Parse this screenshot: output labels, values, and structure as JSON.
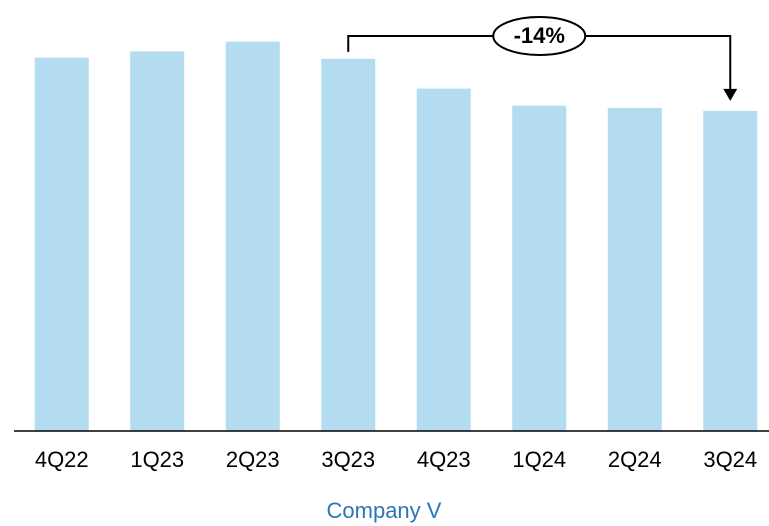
{
  "chart_data": {
    "type": "bar",
    "categories": [
      "4Q22",
      "1Q23",
      "2Q23",
      "3Q23",
      "4Q23",
      "1Q24",
      "2Q24",
      "3Q24"
    ],
    "values": [
      100.3,
      102,
      104.6,
      100,
      92,
      87.4,
      86.8,
      86
    ],
    "color": "#b4dcf0",
    "ylim": [
      0,
      115
    ],
    "xlabel": "Company V",
    "annotation": {
      "text": "-14%",
      "from": 3,
      "to": 7
    }
  }
}
